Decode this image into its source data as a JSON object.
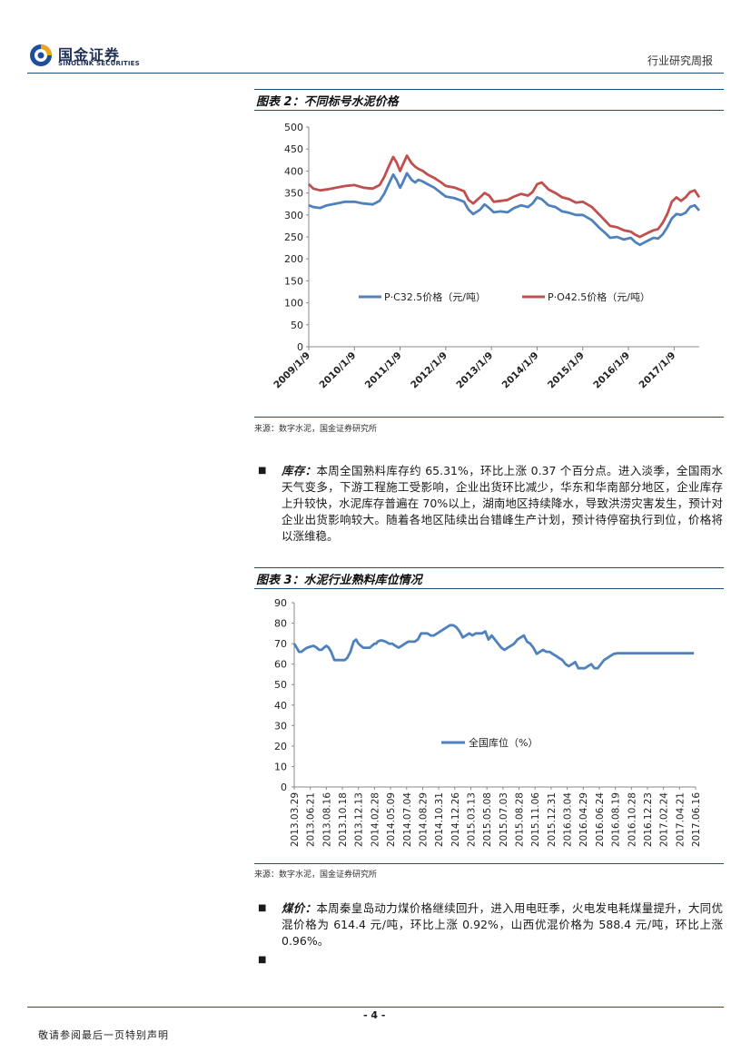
{
  "header": {
    "logo_cn": "国金证券",
    "logo_en": "SINOLINK SECURITIES",
    "report_type": "行业研究周报"
  },
  "figure2": {
    "title": "图表 2：不同标号水泥价格",
    "source": "来源：数字水泥，国金证券研究所"
  },
  "figure3": {
    "title": "图表 3：水泥行业熟料库位情况",
    "source": "来源：数字水泥，国金证券研究所"
  },
  "paragraphs": {
    "inventory_label": "库存：",
    "inventory_text": "本周全国熟料库存约 65.31%，环比上涨 0.37 个百分点。进入淡季，全国雨水天气变多，下游工程施工受影响，企业出货环比减少，华东和华南部分地区，企业库存上升较快，水泥库存普遍在 70%以上，湖南地区持续降水，导致洪涝灾害发生，预计对企业出货影响较大。随着各地区陆续出台错峰生产计划，预计待停窑执行到位，价格将以涨维稳。",
    "coal_label": "煤价：",
    "coal_text": "本周秦皇岛动力煤价格继续回升，进入用电旺季，火电发电耗煤量提升，大同优混价格为 614.4 元/吨，环比上涨 0.92%，山西优混价格为 588.4 元/吨，环比上涨 0.96%。"
  },
  "footer": {
    "page_number": "- 4 -",
    "disclaimer": "敬请参阅最后一页特别声明"
  },
  "colors": {
    "blue": "#4f81bd",
    "red": "#c0504d",
    "rule": "#1f4e79"
  },
  "chart_data": [
    {
      "type": "line",
      "title": "图表 2：不同标号水泥价格",
      "xlabel": "",
      "ylabel": "",
      "ylim": [
        0,
        500
      ],
      "yticks": [
        "0",
        "50",
        "100",
        "150",
        "200",
        "250",
        "300",
        "350",
        "400",
        "450",
        "500"
      ],
      "xlim": [
        2009.0,
        2017.55
      ],
      "x_tick_labels": [
        "2009/1/9",
        "2010/1/9",
        "2011/1/9",
        "2012/1/9",
        "2013/1/9",
        "2014/1/9",
        "2015/1/9",
        "2016/1/9",
        "2017/1/9"
      ],
      "legend": "center",
      "series": [
        {
          "name": "P·C32.5价格（元/吨）",
          "color": "#4f81bd",
          "x": [
            2009.0,
            2009.1,
            2009.25,
            2009.4,
            2009.6,
            2009.8,
            2010.0,
            2010.2,
            2010.4,
            2010.55,
            2010.65,
            2010.75,
            2010.85,
            2010.92,
            2011.0,
            2011.05,
            2011.15,
            2011.25,
            2011.33,
            2011.4,
            2011.5,
            2011.6,
            2011.75,
            2011.9,
            2012.0,
            2012.2,
            2012.4,
            2012.5,
            2012.6,
            2012.75,
            2012.85,
            2012.95,
            2013.05,
            2013.2,
            2013.35,
            2013.5,
            2013.65,
            2013.8,
            2013.9,
            2014.0,
            2014.1,
            2014.25,
            2014.4,
            2014.55,
            2014.7,
            2014.85,
            2015.0,
            2015.2,
            2015.35,
            2015.5,
            2015.6,
            2015.75,
            2015.9,
            2016.05,
            2016.15,
            2016.25,
            2016.4,
            2016.55,
            2016.65,
            2016.75,
            2016.85,
            2016.95,
            2017.05,
            2017.15,
            2017.25,
            2017.35,
            2017.45,
            2017.55
          ],
          "values": [
            322,
            318,
            316,
            322,
            326,
            330,
            330,
            326,
            324,
            332,
            348,
            370,
            392,
            380,
            362,
            372,
            395,
            380,
            374,
            380,
            376,
            370,
            362,
            350,
            342,
            338,
            330,
            312,
            302,
            312,
            324,
            316,
            306,
            308,
            306,
            316,
            322,
            318,
            326,
            340,
            336,
            322,
            318,
            308,
            305,
            300,
            300,
            288,
            272,
            258,
            248,
            250,
            244,
            248,
            238,
            232,
            240,
            248,
            246,
            256,
            272,
            292,
            302,
            300,
            305,
            318,
            322,
            310
          ]
        },
        {
          "name": "P·O42.5价格（元/吨）",
          "color": "#c0504d",
          "x": [
            2009.0,
            2009.1,
            2009.25,
            2009.4,
            2009.6,
            2009.8,
            2010.0,
            2010.2,
            2010.4,
            2010.55,
            2010.65,
            2010.75,
            2010.85,
            2010.92,
            2011.0,
            2011.05,
            2011.15,
            2011.25,
            2011.33,
            2011.4,
            2011.5,
            2011.6,
            2011.75,
            2011.9,
            2012.0,
            2012.2,
            2012.4,
            2012.5,
            2012.6,
            2012.75,
            2012.85,
            2012.95,
            2013.05,
            2013.2,
            2013.35,
            2013.5,
            2013.65,
            2013.8,
            2013.9,
            2014.0,
            2014.1,
            2014.25,
            2014.4,
            2014.55,
            2014.7,
            2014.85,
            2015.0,
            2015.2,
            2015.35,
            2015.5,
            2015.6,
            2015.75,
            2015.9,
            2016.05,
            2016.15,
            2016.25,
            2016.4,
            2016.55,
            2016.65,
            2016.75,
            2016.85,
            2016.95,
            2017.05,
            2017.15,
            2017.25,
            2017.35,
            2017.45,
            2017.55
          ],
          "values": [
            370,
            360,
            356,
            358,
            362,
            366,
            368,
            362,
            360,
            368,
            386,
            410,
            432,
            420,
            400,
            412,
            435,
            418,
            410,
            405,
            400,
            392,
            384,
            374,
            366,
            362,
            354,
            334,
            326,
            340,
            350,
            344,
            330,
            332,
            334,
            342,
            348,
            344,
            352,
            370,
            374,
            358,
            350,
            340,
            336,
            328,
            330,
            318,
            302,
            286,
            275,
            272,
            265,
            262,
            255,
            250,
            258,
            265,
            268,
            282,
            302,
            330,
            340,
            332,
            340,
            352,
            356,
            340
          ]
        }
      ]
    },
    {
      "type": "line",
      "title": "图表 3：水泥行业熟料库位情况",
      "xlabel": "",
      "ylabel": "",
      "ylim": [
        0,
        90
      ],
      "yticks": [
        "0",
        "10",
        "20",
        "30",
        "40",
        "50",
        "60",
        "70",
        "80",
        "90"
      ],
      "x_tick_labels": [
        "2013.03.29",
        "2013.06.21",
        "2013.08.16",
        "2013.10.18",
        "2013.12.13",
        "2014.02.28",
        "2014.05.09",
        "2014.07.04",
        "2014.08.29",
        "2014.10.31",
        "2014.12.26",
        "2015.03.13",
        "2015.05.08",
        "2015.07.03",
        "2015.08.28",
        "2015.11.06",
        "2015.12.31",
        "2016.03.04",
        "2016.04.29",
        "2016.06.24",
        "2016.08.19",
        "2016.10.28",
        "2016.12.23",
        "2017.02.24",
        "2017.04.21",
        "2017.06.16"
      ],
      "legend": "center",
      "series": [
        {
          "name": "全国库位（%）",
          "color": "#4f81bd",
          "x": [
            0,
            0.15,
            0.3,
            0.45,
            0.6,
            0.8,
            1.0,
            1.2,
            1.4,
            1.55,
            1.7,
            1.85,
            2.0,
            2.15,
            2.3,
            2.5,
            2.7,
            2.85,
            3.0,
            3.15,
            3.3,
            3.5,
            3.7,
            3.85,
            4.0,
            4.15,
            4.3,
            4.5,
            4.7,
            4.85,
            5.0,
            5.1,
            5.2,
            5.35,
            5.5,
            5.7,
            5.9,
            6.1,
            6.3,
            6.5,
            6.7,
            6.9,
            7.1,
            7.3,
            7.5,
            7.7,
            7.9,
            8.1,
            8.3,
            8.5,
            8.7,
            8.9,
            9.1,
            9.3,
            9.5,
            9.7,
            9.9,
            10.1,
            10.3,
            10.5,
            10.7,
            10.9,
            11.1,
            11.3,
            11.5,
            11.7,
            11.9,
            12.1,
            12.3,
            12.5,
            12.7,
            12.9,
            13.1,
            13.3,
            13.5,
            13.7,
            13.9,
            14.1,
            14.3,
            14.5,
            14.7,
            14.9,
            15.1,
            15.3,
            15.5,
            15.7,
            15.9,
            16.1,
            16.3,
            16.5,
            16.7,
            16.9,
            17.1,
            17.3,
            17.5,
            17.7,
            17.9,
            18.1,
            18.3,
            18.5,
            18.7,
            18.9,
            19.1,
            19.3,
            19.5,
            19.7,
            19.9,
            20.1,
            20.3,
            20.5,
            20.7,
            20.9,
            21.1,
            21.3,
            21.5,
            21.7,
            21.9,
            22.1,
            22.3,
            22.5,
            22.7,
            22.9,
            23.1,
            23.3,
            23.5,
            23.7,
            23.9,
            24.1,
            24.3,
            24.5,
            24.7,
            24.9,
            25.0
          ],
          "values": [
            70,
            68,
            66,
            66,
            67,
            68,
            68.5,
            69,
            68,
            67,
            67,
            68,
            69,
            68,
            66,
            62,
            62,
            62,
            62,
            62,
            63,
            66,
            71,
            72,
            70,
            69,
            68,
            68,
            68,
            69,
            70,
            70,
            71,
            71.5,
            71.5,
            71,
            70,
            70,
            69,
            68,
            69,
            70,
            71,
            71,
            71,
            72,
            75,
            75,
            75,
            74,
            74,
            75,
            76,
            77,
            78,
            79,
            79,
            78,
            76,
            73,
            74,
            75,
            74,
            75,
            75,
            75,
            76,
            72,
            74,
            72,
            70,
            68,
            67,
            68,
            69,
            70,
            72,
            73,
            74,
            71,
            70,
            68,
            65,
            66,
            67,
            66,
            66,
            65,
            64,
            63,
            62,
            60,
            59,
            60,
            61,
            58,
            58,
            58,
            59,
            60,
            58,
            58,
            60,
            62,
            63,
            64,
            65,
            65.3,
            65.31,
            65.3,
            65.31,
            65.31,
            65.31,
            65.31,
            65.31,
            65.31,
            65.31,
            65.31,
            65.31,
            65.31,
            65.31,
            65.31,
            65.31,
            65.31,
            65.31,
            65.31,
            65.31,
            65.31,
            65.31,
            65.31,
            65.31,
            65.31,
            65.31
          ]
        }
      ]
    }
  ]
}
